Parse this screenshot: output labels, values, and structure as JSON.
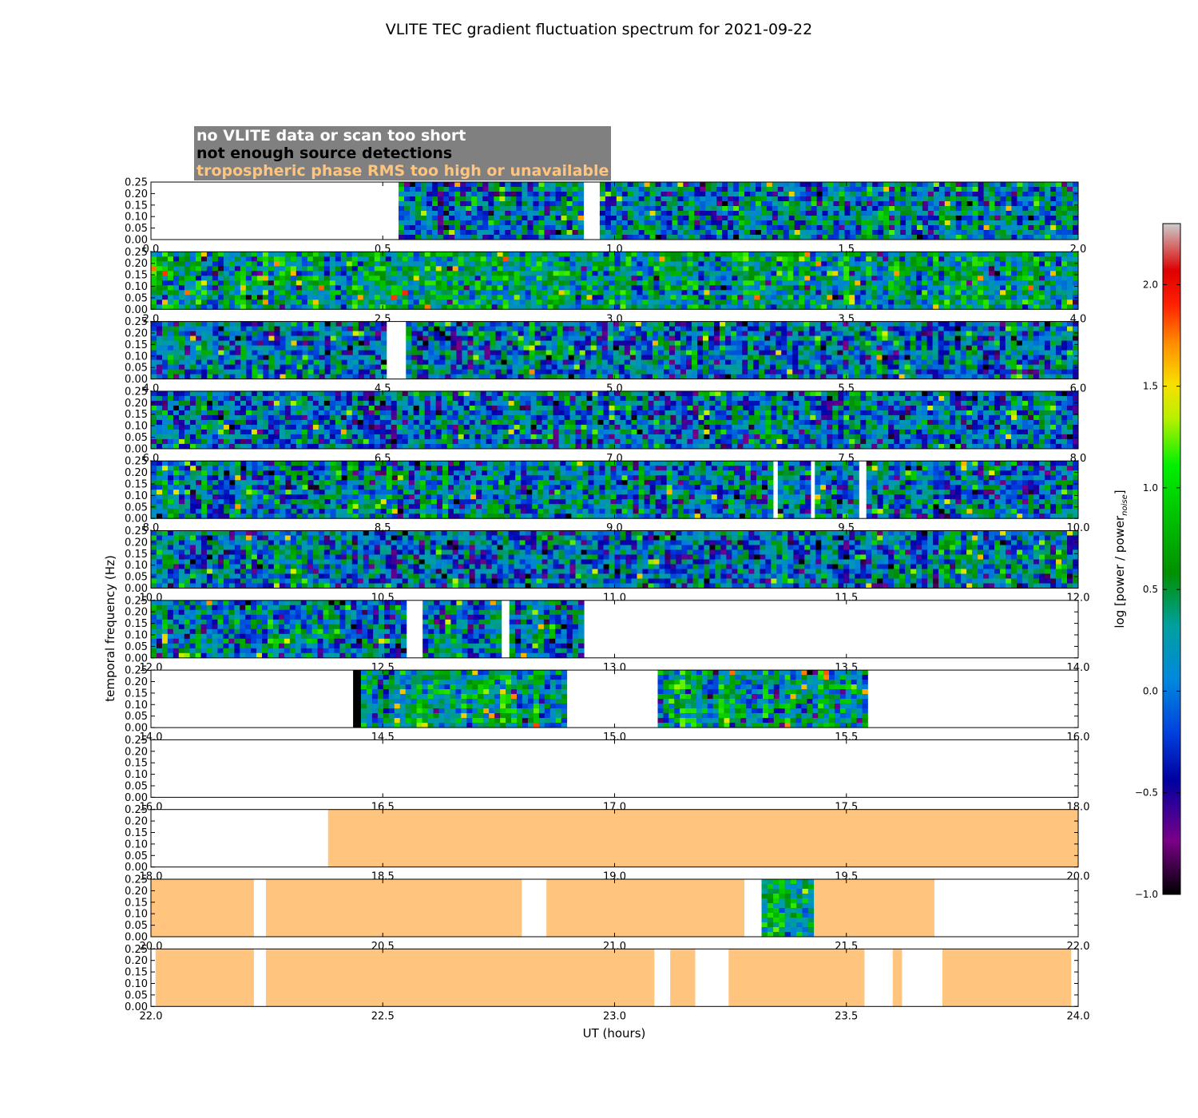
{
  "chart_data": {
    "type": "heatmap",
    "title": "VLITE TEC gradient fluctuation spectrum for 2021-09-22",
    "xlabel": "UT (hours)",
    "ylabel": "temporal frequency (Hz)",
    "ylim": [
      0,
      0.25
    ],
    "y_ticks": [
      "0.00",
      "0.05",
      "0.10",
      "0.15",
      "0.20",
      "0.25"
    ],
    "colorbar": {
      "label_main": "log [power / power",
      "label_sub": "noise",
      "label_end": "]",
      "range": [
        -1.0,
        2.3
      ],
      "ticks": [
        "−1.0",
        "−0.5",
        "0.0",
        "0.5",
        "1.0",
        "1.5",
        "2.0"
      ],
      "tick_values": [
        -1.0,
        -0.5,
        0.0,
        0.5,
        1.0,
        1.5,
        2.0
      ]
    },
    "legend": [
      {
        "label": "no VLITE data or scan too short",
        "color": "#ffffff"
      },
      {
        "label": "not enough source detections",
        "color": "#000000"
      },
      {
        "label": "tropospheric phase RMS too high or unavailable",
        "color": "#ffc47e"
      }
    ],
    "panels": [
      {
        "x_range": [
          0,
          2
        ],
        "x_ticks": [
          "0.0",
          "0.5",
          "1.0",
          "1.5",
          "2.0"
        ],
        "segments": [
          {
            "start": 0.534,
            "end": 0.933,
            "kind": "data"
          },
          {
            "start": 0.968,
            "end": 2.0,
            "kind": "data"
          }
        ]
      },
      {
        "x_range": [
          2,
          4
        ],
        "x_ticks": [
          "2.0",
          "2.5",
          "3.0",
          "3.5",
          "4.0"
        ],
        "segments": [
          {
            "start": 2.0,
            "end": 4.0,
            "kind": "data"
          }
        ]
      },
      {
        "x_range": [
          4,
          6
        ],
        "x_ticks": [
          "4.0",
          "4.5",
          "5.0",
          "5.5",
          "6.0"
        ],
        "segments": [
          {
            "start": 4.0,
            "end": 4.508,
            "kind": "data"
          },
          {
            "start": 4.55,
            "end": 6.0,
            "kind": "data"
          }
        ]
      },
      {
        "x_range": [
          6,
          8
        ],
        "x_ticks": [
          "6.0",
          "6.5",
          "7.0",
          "7.5",
          "8.0"
        ],
        "segments": [
          {
            "start": 6.0,
            "end": 8.0,
            "kind": "data"
          }
        ]
      },
      {
        "x_range": [
          8,
          10
        ],
        "x_ticks": [
          "8.0",
          "8.5",
          "9.0",
          "9.5",
          "10.0"
        ],
        "segments": [
          {
            "start": 8.0,
            "end": 9.342,
            "kind": "data"
          },
          {
            "start": 9.352,
            "end": 9.423,
            "kind": "data"
          },
          {
            "start": 9.432,
            "end": 9.527,
            "kind": "data"
          },
          {
            "start": 9.543,
            "end": 10.0,
            "kind": "data"
          }
        ]
      },
      {
        "x_range": [
          10,
          12
        ],
        "x_ticks": [
          "10.0",
          "10.5",
          "11.0",
          "11.5",
          "12.0"
        ],
        "segments": [
          {
            "start": 10.0,
            "end": 12.0,
            "kind": "data"
          }
        ]
      },
      {
        "x_range": [
          12,
          14
        ],
        "x_ticks": [
          "12.0",
          "12.5",
          "13.0",
          "13.5",
          "14.0"
        ],
        "segments": [
          {
            "start": 12.0,
            "end": 12.551,
            "kind": "data"
          },
          {
            "start": 12.586,
            "end": 12.756,
            "kind": "data"
          },
          {
            "start": 12.773,
            "end": 12.934,
            "kind": "data"
          }
        ]
      },
      {
        "x_range": [
          14,
          16
        ],
        "x_ticks": [
          "14.0",
          "14.5",
          "15.0",
          "15.5",
          "16.0"
        ],
        "segments": [
          {
            "start": 14.436,
            "end": 14.453,
            "kind": "no_detections"
          },
          {
            "start": 14.453,
            "end": 14.897,
            "kind": "data"
          },
          {
            "start": 15.093,
            "end": 15.546,
            "kind": "data"
          }
        ]
      },
      {
        "x_range": [
          16,
          18
        ],
        "x_ticks": [
          "16.0",
          "16.5",
          "17.0",
          "17.5",
          "18.0"
        ],
        "segments": []
      },
      {
        "x_range": [
          18,
          20
        ],
        "x_ticks": [
          "18.0",
          "18.5",
          "19.0",
          "19.5",
          "20.0"
        ],
        "segments": [
          {
            "start": 18.382,
            "end": 20.0,
            "kind": "troposphere"
          }
        ]
      },
      {
        "x_range": [
          20,
          22
        ],
        "x_ticks": [
          "20.0",
          "20.5",
          "21.0",
          "21.5",
          "22.0"
        ],
        "segments": [
          {
            "start": 20.0,
            "end": 20.222,
            "kind": "troposphere"
          },
          {
            "start": 20.248,
            "end": 20.8,
            "kind": "troposphere"
          },
          {
            "start": 20.853,
            "end": 21.28,
            "kind": "troposphere"
          },
          {
            "start": 21.317,
            "end": 21.43,
            "kind": "data"
          },
          {
            "start": 21.43,
            "end": 21.69,
            "kind": "troposphere"
          }
        ]
      },
      {
        "x_range": [
          22,
          24
        ],
        "x_ticks": [
          "22.0",
          "22.5",
          "23.0",
          "23.5",
          "24.0"
        ],
        "segments": [
          {
            "start": 22.01,
            "end": 22.222,
            "kind": "troposphere"
          },
          {
            "start": 22.248,
            "end": 23.086,
            "kind": "troposphere"
          },
          {
            "start": 23.12,
            "end": 23.174,
            "kind": "troposphere"
          },
          {
            "start": 23.246,
            "end": 23.539,
            "kind": "troposphere"
          },
          {
            "start": 23.6,
            "end": 23.62,
            "kind": "troposphere"
          },
          {
            "start": 23.707,
            "end": 23.985,
            "kind": "troposphere"
          }
        ]
      }
    ]
  }
}
